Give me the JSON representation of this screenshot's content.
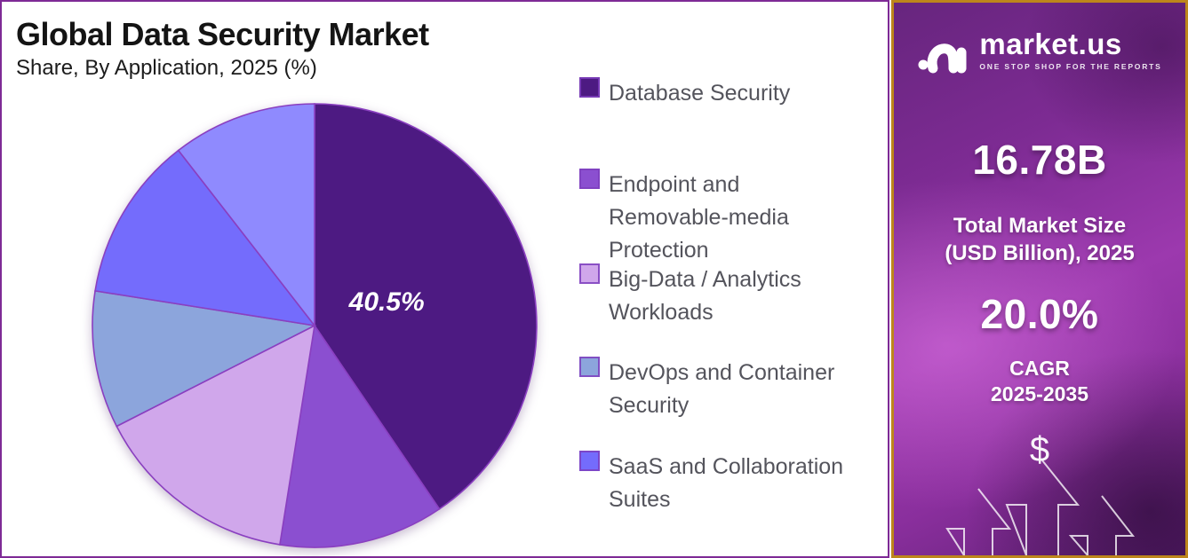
{
  "header": {
    "title": "Global Data Security Market",
    "subtitle": "Share, By Application, 2025 (%)"
  },
  "chart_data": {
    "type": "pie",
    "title": "Global Data Security Market Share, By Application, 2025 (%)",
    "start_angle_deg": 0,
    "direction": "clockwise",
    "legend_position": "right",
    "slices": [
      {
        "name": "Database Security",
        "value": 40.5,
        "color": "#4D1A82",
        "label": "40.5%"
      },
      {
        "name": "Endpoint and Removable-media Protection",
        "value": 12.0,
        "color": "#8B4FD0"
      },
      {
        "name": "Big-Data / Analytics Workloads",
        "value": 15.0,
        "color": "#D0A7EB"
      },
      {
        "name": "DevOps and Container Security",
        "value": 10.0,
        "color": "#8CA5DC"
      },
      {
        "name": "SaaS and Collaboration Suites",
        "value": 12.0,
        "color": "#746CFC"
      },
      {
        "name": "",
        "value": 10.5,
        "color": "#8F8AFE"
      }
    ]
  },
  "panel": {
    "brand_name": "market.us",
    "brand_tagline": "ONE STOP SHOP FOR THE REPORTS",
    "market_size_value": "16.78B",
    "market_size_label_line1": "Total Market Size",
    "market_size_label_line2": "(USD Billion), 2025",
    "cagr_value": "20.0%",
    "cagr_label_line1": "CAGR",
    "cagr_label_line2": "2025-2035",
    "dollar_symbol": "$",
    "colors": {
      "panel_border": "#BD861B",
      "chart_border": "#7E2A96",
      "slice_stroke": "#8A3FC0",
      "legend_text": "#54545C"
    }
  }
}
